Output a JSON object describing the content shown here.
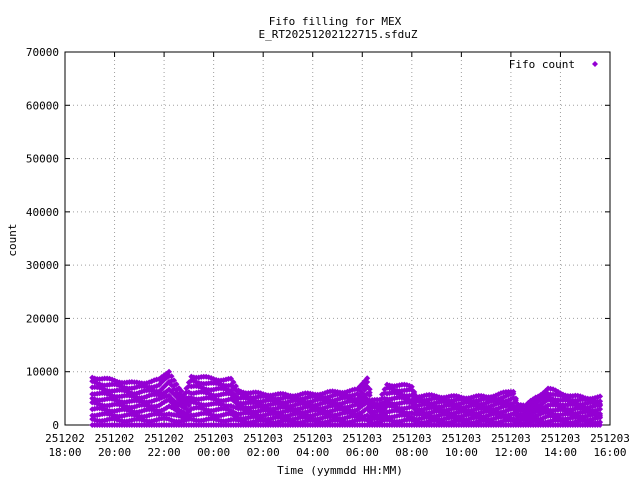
{
  "chart_data": {
    "type": "scatter",
    "title_lines": [
      "Fifo filling for MEX",
      "E_RT20251202122715.sfduZ"
    ],
    "xlabel": "Time (yymmdd HH:MM)",
    "ylabel": "count",
    "ylim": [
      0,
      70000
    ],
    "y_ticks": [
      0,
      10000,
      20000,
      30000,
      40000,
      50000,
      60000,
      70000
    ],
    "xlim_hours": [
      18,
      40
    ],
    "x_ticks": [
      {
        "date": "251202",
        "time": "18:00",
        "hour": 18
      },
      {
        "date": "251202",
        "time": "20:00",
        "hour": 20
      },
      {
        "date": "251202",
        "time": "22:00",
        "hour": 22
      },
      {
        "date": "251203",
        "time": "00:00",
        "hour": 24
      },
      {
        "date": "251203",
        "time": "02:00",
        "hour": 26
      },
      {
        "date": "251203",
        "time": "04:00",
        "hour": 28
      },
      {
        "date": "251203",
        "time": "06:00",
        "hour": 30
      },
      {
        "date": "251203",
        "time": "08:00",
        "hour": 32
      },
      {
        "date": "251203",
        "time": "10:00",
        "hour": 34
      },
      {
        "date": "251203",
        "time": "12:00",
        "hour": 36
      },
      {
        "date": "251203",
        "time": "14:00",
        "hour": 38
      },
      {
        "date": "251203",
        "time": "16:00",
        "hour": 40
      }
    ],
    "grid": true,
    "legend_position": "top-right",
    "series": [
      {
        "name": "Fifo count",
        "color": "#9400d3",
        "marker": "diamond",
        "x_start_hour": 19.1,
        "x_end_hour": 39.6,
        "levels": 9,
        "envelope": [
          [
            19.1,
            9000
          ],
          [
            19.6,
            8600
          ],
          [
            20.2,
            8200
          ],
          [
            20.8,
            7800
          ],
          [
            21.2,
            8000
          ],
          [
            21.8,
            8400
          ],
          [
            22.2,
            10200
          ],
          [
            22.6,
            6800
          ],
          [
            22.8,
            5500
          ],
          [
            23.1,
            9200
          ],
          [
            23.5,
            9000
          ],
          [
            24.0,
            8600
          ],
          [
            24.7,
            8500
          ],
          [
            25.0,
            6500
          ],
          [
            25.5,
            6000
          ],
          [
            26.0,
            5800
          ],
          [
            27.0,
            5600
          ],
          [
            28.0,
            5800
          ],
          [
            29.0,
            6200
          ],
          [
            29.8,
            6500
          ],
          [
            30.2,
            9000
          ],
          [
            30.4,
            4800
          ],
          [
            30.7,
            4500
          ],
          [
            31.0,
            7600
          ],
          [
            31.6,
            7400
          ],
          [
            32.0,
            7200
          ],
          [
            32.2,
            5500
          ],
          [
            33.0,
            5400
          ],
          [
            34.0,
            5200
          ],
          [
            35.0,
            5300
          ],
          [
            35.8,
            6000
          ],
          [
            36.1,
            6400
          ],
          [
            36.3,
            4000
          ],
          [
            36.6,
            3500
          ],
          [
            37.0,
            5200
          ],
          [
            37.5,
            6800
          ],
          [
            38.0,
            6000
          ],
          [
            38.5,
            5400
          ],
          [
            39.0,
            5100
          ],
          [
            39.6,
            5200
          ]
        ]
      }
    ]
  }
}
